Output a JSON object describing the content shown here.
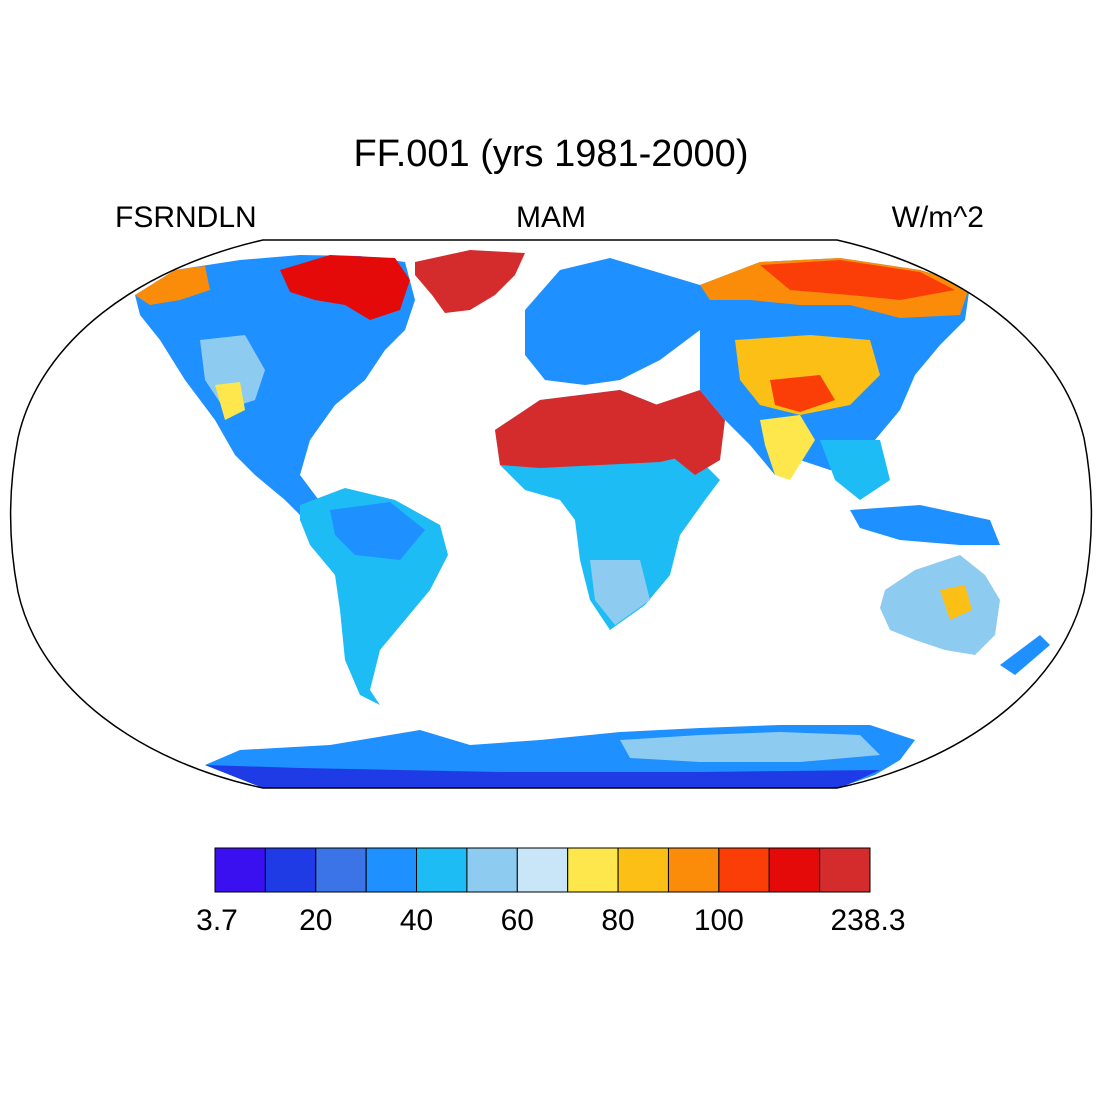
{
  "title": "FF.001 (yrs 1981-2000)",
  "left_string": "FSRNDLN",
  "center_string": "MAM",
  "right_string": "W/m^2",
  "colorbar": {
    "colors": [
      "#3a10f0",
      "#1f3be6",
      "#3b74e6",
      "#1e90ff",
      "#1ebcf5",
      "#8ecbf0",
      "#c8e6f7",
      "#fde74c",
      "#fbbf16",
      "#fb8c0a",
      "#fb3e07",
      "#e50a0a",
      "#d42c2c"
    ],
    "labels": [
      "3.7",
      "20",
      "40",
      "60",
      "80",
      "100",
      "238.3"
    ]
  },
  "chart_data": {
    "type": "heatmap",
    "projection": "Robinson",
    "variable": "FSRNDLN",
    "season": "MAM",
    "units": "W/m^2",
    "range": [
      3.7,
      238.3
    ],
    "levels": [
      20,
      30,
      40,
      50,
      60,
      70,
      80,
      90,
      100,
      110,
      120,
      130
    ],
    "regions": [
      {
        "name": "Sahara",
        "value": 135
      },
      {
        "name": "Arabian Peninsula",
        "value": 135
      },
      {
        "name": "Greenland",
        "value": 135
      },
      {
        "name": "Canadian Arctic",
        "value": 125
      },
      {
        "name": "Siberia",
        "value": 115
      },
      {
        "name": "Central Asia",
        "value": 95
      },
      {
        "name": "Tibetan Plateau",
        "value": 85
      },
      {
        "name": "India",
        "value": 80
      },
      {
        "name": "Sahel",
        "value": 60
      },
      {
        "name": "Europe",
        "value": 35
      },
      {
        "name": "North America",
        "value": 45
      },
      {
        "name": "South America",
        "value": 45
      },
      {
        "name": "Central Africa",
        "value": 42
      },
      {
        "name": "Southern Africa",
        "value": 55
      },
      {
        "name": "Australia",
        "value": 50
      },
      {
        "name": "Southeast Asia",
        "value": 32
      },
      {
        "name": "Antarctica coast",
        "value": 20
      },
      {
        "name": "Antarctica interior",
        "value": 60
      }
    ]
  }
}
